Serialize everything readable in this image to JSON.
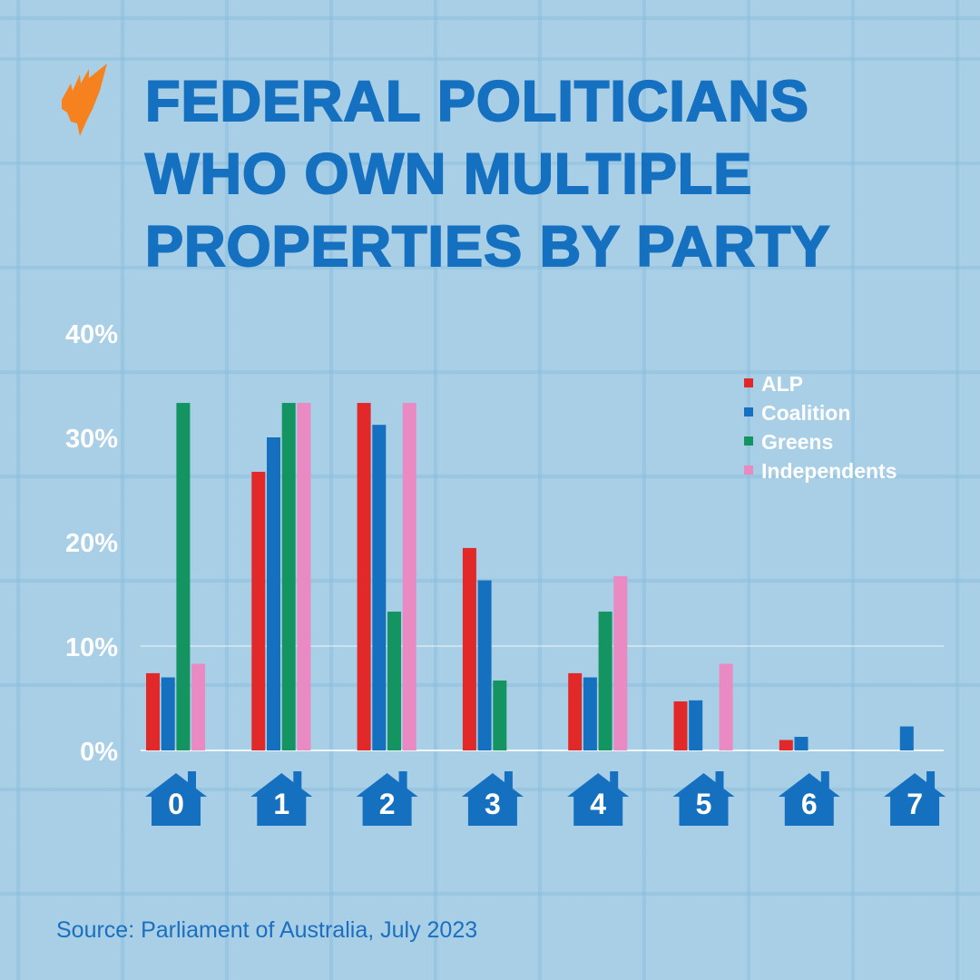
{
  "logo": {
    "icon": "sbs-flame-logo",
    "color": "#f5821f"
  },
  "title": [
    "FEDERAL POLITICIANS",
    "WHO OWN MULTIPLE",
    "PROPERTIES BY PARTY"
  ],
  "source": "Source: Parliament of Australia, July 2023",
  "chart_data": {
    "type": "bar",
    "title": "FEDERAL POLITICIANS WHO OWN MULTIPLE PROPERTIES BY PARTY",
    "xlabel": "",
    "ylabel": "",
    "categories": [
      "0",
      "1",
      "2",
      "3",
      "4",
      "5",
      "6",
      "7"
    ],
    "category_icon": "house-icon",
    "yticks": [
      "0%",
      "10%",
      "20%",
      "30%",
      "40%"
    ],
    "ylim": [
      0,
      40
    ],
    "legend_position": "top-right",
    "series": [
      {
        "name": "ALP",
        "color": "#e2292a",
        "values": [
          7.4,
          26.7,
          33.3,
          19.4,
          7.4,
          4.7,
          1.0,
          0
        ]
      },
      {
        "name": "Coalition",
        "color": "#1570c0",
        "values": [
          7.0,
          30.0,
          31.2,
          16.3,
          7.0,
          4.8,
          1.3,
          2.3
        ]
      },
      {
        "name": "Greens",
        "color": "#139461",
        "values": [
          33.3,
          33.3,
          13.3,
          6.7,
          13.3,
          0,
          0,
          0
        ]
      },
      {
        "name": "Independents",
        "color": "#e98ac2",
        "values": [
          8.3,
          33.3,
          33.3,
          0,
          16.7,
          8.3,
          0,
          0
        ]
      }
    ]
  }
}
